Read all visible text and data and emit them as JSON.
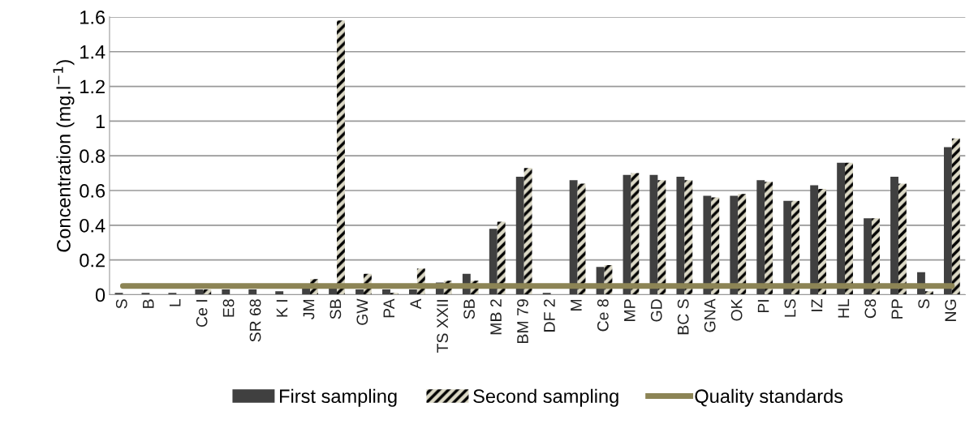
{
  "chart_data": {
    "type": "bar",
    "ylabel": "Concentration (mg.l$^{−1}$)",
    "categories": [
      "S",
      "B",
      "L",
      "Ce I",
      "E8",
      "SR 68",
      "K I",
      "JM",
      "SB",
      "GW",
      "PA",
      "A",
      "TS XXII",
      "SB",
      "MB 2",
      "BM 79",
      "DF 2",
      "M",
      "Ce 8",
      "MP",
      "GD",
      "BC S",
      "GNA",
      "OK",
      "PI",
      "LS",
      "IZ",
      "HL",
      "C8",
      "PP",
      "S",
      "NG"
    ],
    "series": [
      {
        "name": "First sampling",
        "color": "#404040",
        "values": [
          0.01,
          0.01,
          0.01,
          0.03,
          0.03,
          0.03,
          0.02,
          0.04,
          0.04,
          0.03,
          0.03,
          0.03,
          0.07,
          0.12,
          0.38,
          0.68,
          0.01,
          0.66,
          0.16,
          0.69,
          0.69,
          0.68,
          0.57,
          0.57,
          0.66,
          0.54,
          0.63,
          0.76,
          0.44,
          0.68,
          0.13,
          0.85
        ]
      },
      {
        "name": "Second sampling",
        "color": "#dcd9c6",
        "values": [
          0,
          0,
          0,
          0.03,
          0,
          0,
          0,
          0.09,
          1.58,
          0.12,
          0.01,
          0.15,
          0.08,
          0.08,
          0.42,
          0.73,
          0,
          0.64,
          0.17,
          0.7,
          0.66,
          0.66,
          0.56,
          0.58,
          0.65,
          0.54,
          0.61,
          0.76,
          0.44,
          0.64,
          0.02,
          0.9
        ]
      },
      {
        "name": "Quality standards",
        "type": "line",
        "color": "#8c8455",
        "values": [
          0.05,
          0.05,
          0.05,
          0.05,
          0.05,
          0.05,
          0.05,
          0.05,
          0.05,
          0.05,
          0.05,
          0.05,
          0.05,
          0.05,
          0.05,
          0.05,
          0.05,
          0.05,
          0.05,
          0.05,
          0.05,
          0.05,
          0.05,
          0.05,
          0.05,
          0.05,
          0.05,
          0.05,
          0.05,
          0.05,
          0.05,
          0.05
        ]
      }
    ],
    "ylim": [
      0,
      1.6
    ],
    "yticks": [
      0,
      0.2,
      0.4,
      0.6,
      0.8,
      1,
      1.2,
      1.4,
      1.6
    ],
    "grid": "y",
    "legend": "bottom",
    "marker": "none",
    "line_style": "solid"
  }
}
